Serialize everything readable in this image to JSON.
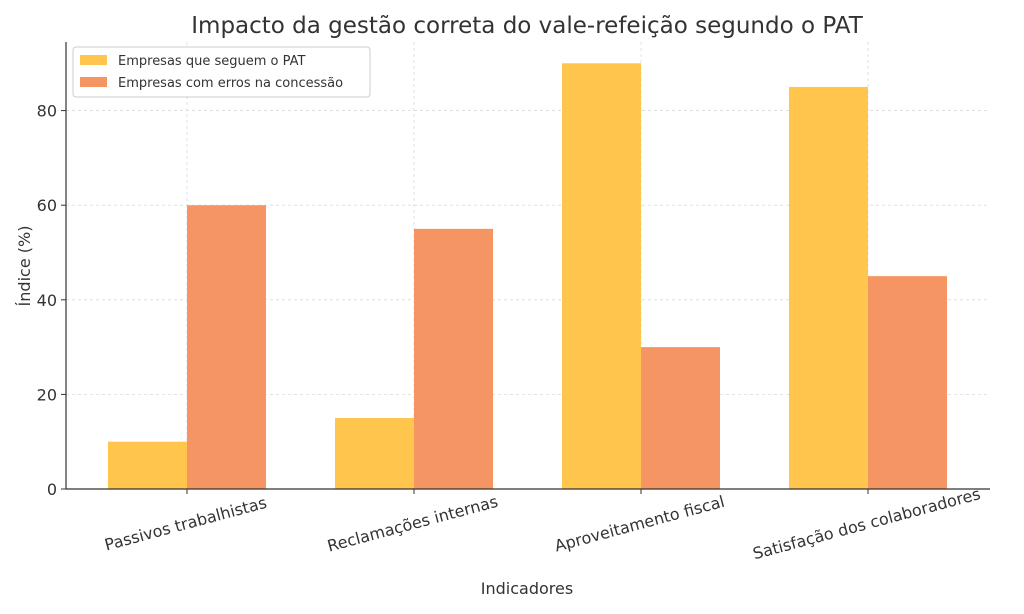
{
  "chart_data": {
    "type": "bar",
    "title": "Impacto da gestão correta do vale-refeição segundo o PAT",
    "xlabel": "Indicadores",
    "ylabel": "Índice (%)",
    "categories": [
      "Passivos trabalhistas",
      "Reclamações internas",
      "Aproveitamento fiscal",
      "Satisfação dos colaboradores"
    ],
    "series": [
      {
        "name": "Empresas que seguem o PAT",
        "values": [
          10,
          15,
          90,
          85
        ],
        "color": "#FFC54D"
      },
      {
        "name": "Empresas com erros na concessão",
        "values": [
          60,
          55,
          30,
          45
        ],
        "color": "#F59563"
      }
    ],
    "ylim": [
      0,
      94.5
    ],
    "yticks": [
      0,
      20,
      40,
      60,
      80
    ],
    "grid": true,
    "legend_position": "top-left"
  }
}
